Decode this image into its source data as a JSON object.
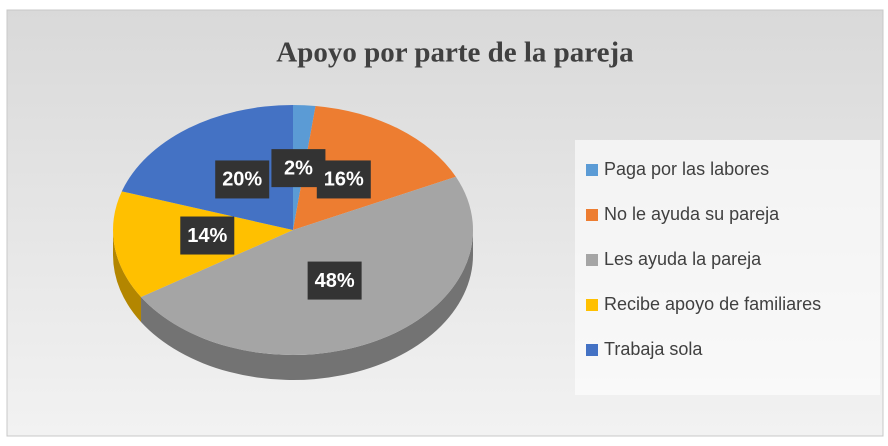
{
  "chart_data": {
    "type": "pie",
    "title": "Apoyo por parte de la pareja",
    "categories": [
      "Paga por las labores",
      "No le ayuda su pareja",
      "Les ayuda la pareja",
      "Recibe apoyo de familiares",
      "Trabaja sola"
    ],
    "values": [
      2,
      16,
      48,
      14,
      20
    ],
    "value_labels": [
      "2%",
      "16%",
      "48%",
      "14%",
      "20%"
    ],
    "colors": [
      "#5b9bd5",
      "#ed7d31",
      "#a5a5a5",
      "#ffc000",
      "#4472c4"
    ],
    "legend": "right"
  }
}
